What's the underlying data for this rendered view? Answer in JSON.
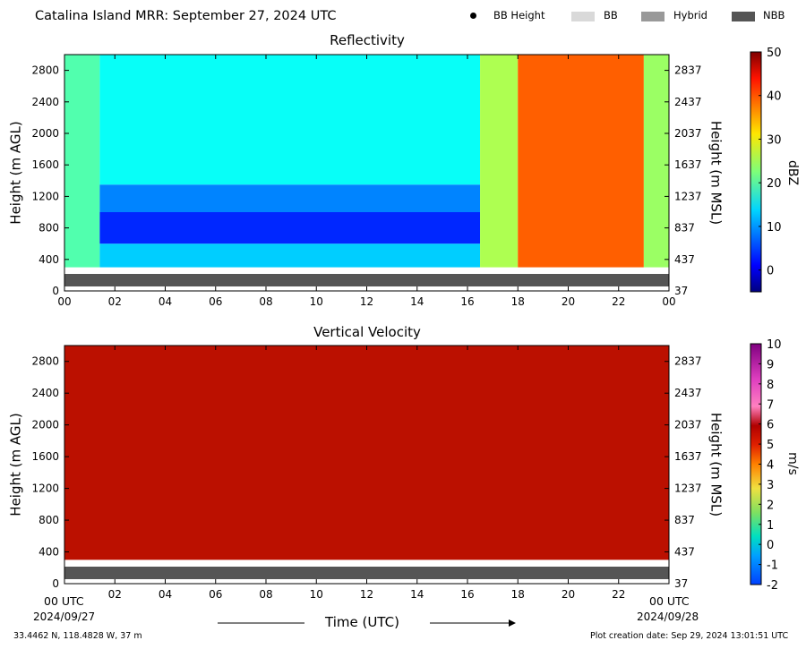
{
  "header": {
    "title": "Catalina Island MRR:  September 27, 2024 UTC"
  },
  "legend": [
    {
      "label": "BB Height",
      "marker": "dot",
      "color": "#000000"
    },
    {
      "label": "BB",
      "marker": "box",
      "color": "#d9d9d9"
    },
    {
      "label": "Hybrid",
      "marker": "box",
      "color": "#999999"
    },
    {
      "label": "NBB",
      "marker": "box",
      "color": "#555555"
    }
  ],
  "shared_axes": {
    "x_ticks": [
      "00",
      "02",
      "04",
      "06",
      "08",
      "10",
      "12",
      "14",
      "16",
      "18",
      "20",
      "22",
      "00"
    ],
    "x_tick_values": [
      0,
      2,
      4,
      6,
      8,
      10,
      12,
      14,
      16,
      18,
      20,
      22,
      24
    ],
    "xlim": [
      0,
      24
    ],
    "ylim": [
      0,
      3000
    ],
    "y_ticks_left": [
      "0",
      "400",
      "800",
      "1200",
      "1600",
      "2000",
      "2400",
      "2800"
    ],
    "y_tick_values_left": [
      0,
      400,
      800,
      1200,
      1600,
      2000,
      2400,
      2800
    ],
    "y_ticks_right": [
      "37",
      "437",
      "837",
      "1237",
      "1637",
      "2037",
      "2437",
      "2837"
    ],
    "ylabel_left": "Height (m AGL)",
    "ylabel_right": "Height (m MSL)"
  },
  "bottom_axis": {
    "start_label": "00 UTC",
    "start_date": "2024/09/27",
    "end_label": "00 UTC",
    "end_date": "2024/09/28",
    "xlabel": "Time (UTC)"
  },
  "footer": {
    "location": "33.4462 N, 118.4828 W, 37 m",
    "creation": "Plot creation date: Sep 29, 2024 13:01:51 UTC"
  },
  "chart_data": [
    {
      "type": "heatmap",
      "title": "Reflectivity",
      "colorbar_label": "dBZ",
      "colorbar_ticks": [
        "0",
        "10",
        "20",
        "30",
        "40",
        "50"
      ],
      "colorbar_tick_values": [
        0,
        10,
        20,
        30,
        40,
        50
      ],
      "clim": [
        -5,
        50
      ],
      "colormap": "jet",
      "xlim": [
        0,
        24
      ],
      "ylim": [
        0,
        3000
      ],
      "data_bottom": 300,
      "bright_band_type_height": 200,
      "approx_regions": [
        {
          "t_start": 0,
          "t_end": 1.4,
          "h_start": 300,
          "h_end": 3000,
          "dbz": 20
        },
        {
          "t_start": 1.4,
          "t_end": 16.5,
          "h_start": 300,
          "h_end": 600,
          "dbz": 13
        },
        {
          "t_start": 1.4,
          "t_end": 16.5,
          "h_start": 600,
          "h_end": 1000,
          "dbz": 4
        },
        {
          "t_start": 1.4,
          "t_end": 16.5,
          "h_start": 1000,
          "h_end": 1350,
          "dbz": 9
        },
        {
          "t_start": 1.4,
          "t_end": 16.5,
          "h_start": 1350,
          "h_end": 3000,
          "dbz": 16
        },
        {
          "t_start": 16.5,
          "t_end": 18,
          "h_start": 300,
          "h_end": 3000,
          "dbz": 25
        },
        {
          "t_start": 18,
          "t_end": 23,
          "h_start": 300,
          "h_end": 3000,
          "dbz": 38
        },
        {
          "t_start": 23,
          "t_end": 24,
          "h_start": 300,
          "h_end": 3000,
          "dbz": 24
        }
      ]
    },
    {
      "type": "heatmap",
      "title": "Vertical Velocity",
      "colorbar_label": "m/s",
      "colorbar_ticks": [
        "-2",
        "-1",
        "0",
        "1",
        "2",
        "3",
        "4",
        "5",
        "6",
        "7",
        "8",
        "9",
        "10"
      ],
      "colorbar_tick_values": [
        -2,
        -1,
        0,
        1,
        2,
        3,
        4,
        5,
        6,
        7,
        8,
        9,
        10
      ],
      "clim": [
        -2,
        10
      ],
      "xlim": [
        0,
        24
      ],
      "ylim": [
        0,
        3000
      ],
      "data_bottom": 300,
      "bright_band_type_height": 200,
      "approx_regions": [
        {
          "t_start": 0,
          "t_end": 24,
          "h_start": 300,
          "h_end": 3000,
          "ms": 6
        }
      ]
    }
  ]
}
